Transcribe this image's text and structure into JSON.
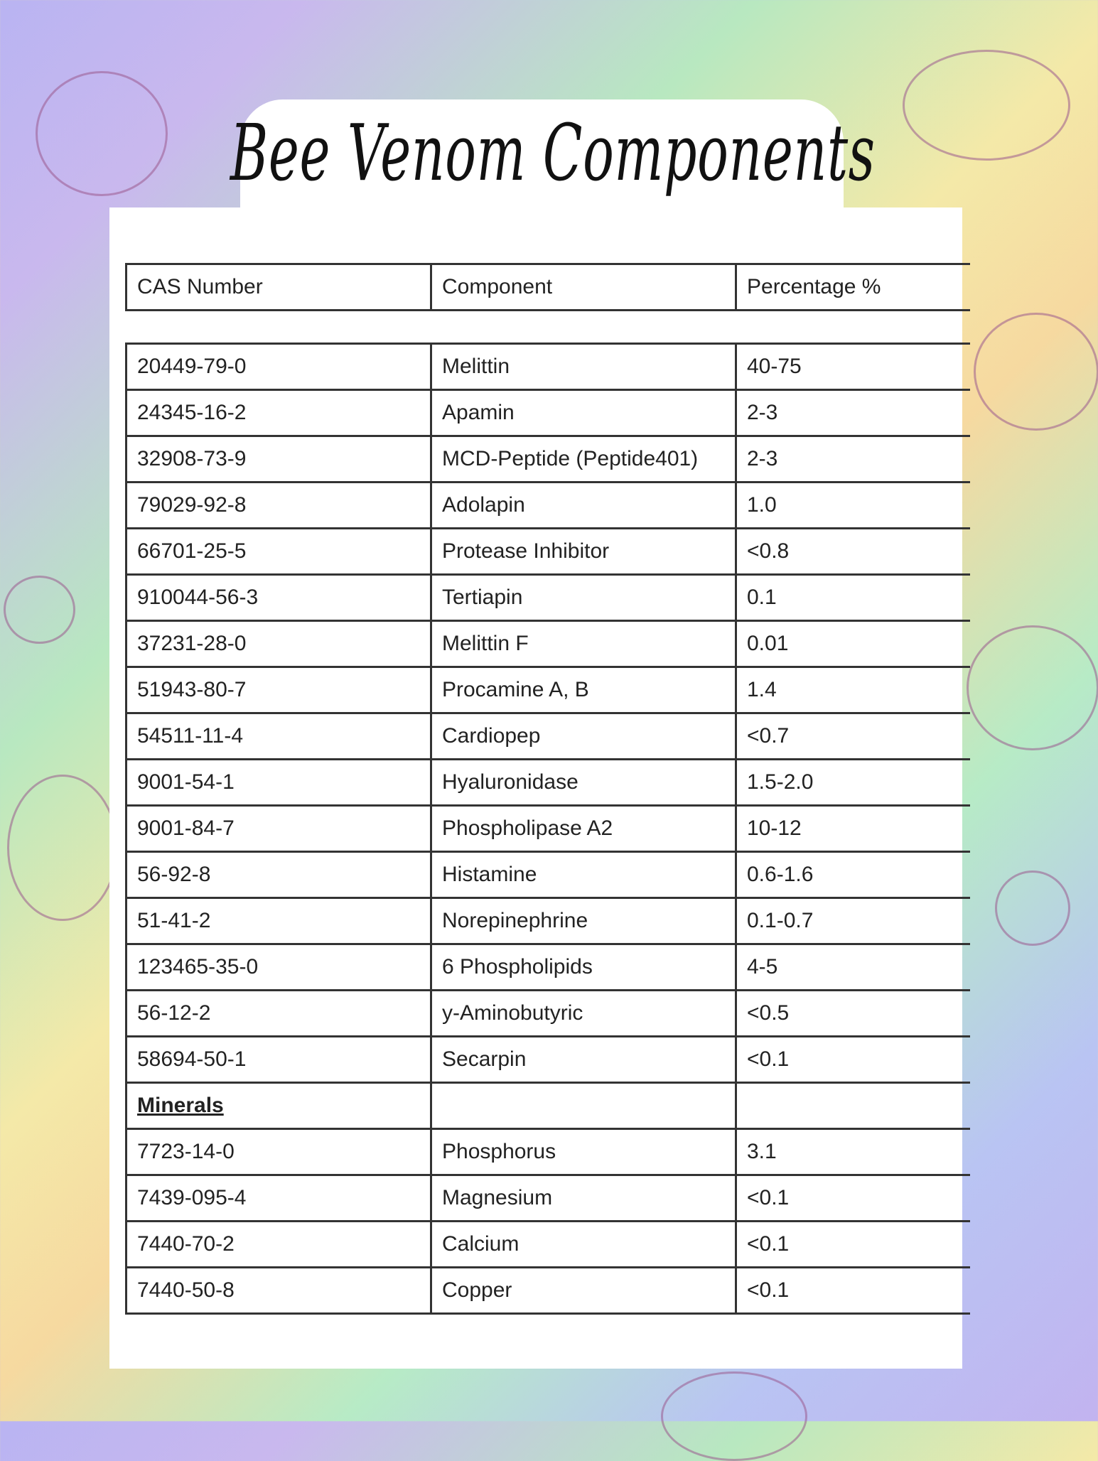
{
  "title": "Bee Venom Components",
  "headers": [
    "CAS Number",
    "Component",
    "Percentage %"
  ],
  "rows": [
    [
      "20449-79-0",
      "Melittin",
      "40-75"
    ],
    [
      "24345-16-2",
      "Apamin",
      "2-3"
    ],
    [
      "32908-73-9",
      "MCD-Peptide (Peptide401)",
      "2-3"
    ],
    [
      "79029-92-8",
      "Adolapin",
      "1.0"
    ],
    [
      "66701-25-5",
      "Protease Inhibitor",
      "<0.8"
    ],
    [
      "910044-56-3",
      "Tertiapin",
      "0.1"
    ],
    [
      "37231-28-0",
      "Melittin F",
      "0.01"
    ],
    [
      "51943-80-7",
      "Procamine A, B",
      "1.4"
    ],
    [
      "54511-11-4",
      "Cardiopep",
      "<0.7"
    ],
    [
      "9001-54-1",
      "Hyaluronidase",
      "1.5-2.0"
    ],
    [
      "9001-84-7",
      "Phospholipase A2",
      "10-12"
    ],
    [
      "56-92-8",
      "Histamine",
      "0.6-1.6"
    ],
    [
      "51-41-2",
      "Norepinephrine",
      "0.1-0.7"
    ],
    [
      "123465-35-0",
      "6 Phospholipids",
      "4-5"
    ],
    [
      "56-12-2",
      "y-Aminobutyric",
      "<0.5"
    ],
    [
      "58694-50-1",
      "Secarpin",
      "<0.1"
    ]
  ],
  "minerals_label": "Minerals",
  "minerals": [
    [
      "7723-14-0",
      "Phosphorus",
      "3.1"
    ],
    [
      "7439-095-4",
      "Magnesium",
      "<0.1"
    ],
    [
      "7440-70-2",
      "Calcium",
      "<0.1"
    ],
    [
      "7440-50-8",
      "Copper",
      "<0.1"
    ]
  ]
}
